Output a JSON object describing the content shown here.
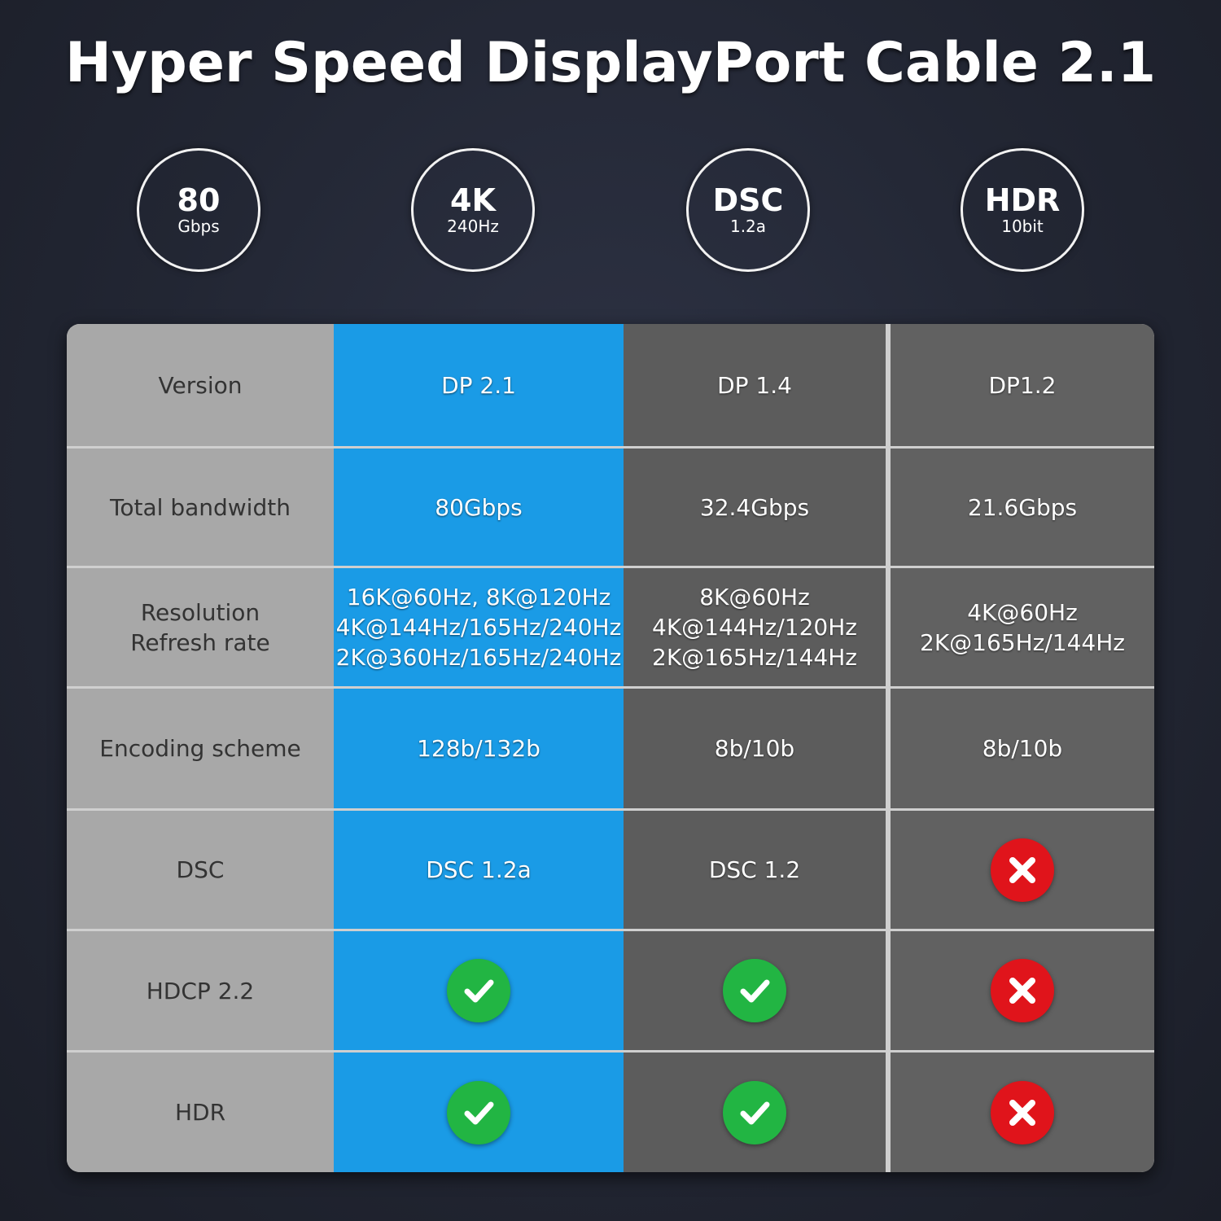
{
  "title": "Hyper Speed DisplayPort Cable 2.1",
  "badges": [
    {
      "big": "80",
      "small": "Gbps"
    },
    {
      "big": "4K",
      "small": "240Hz"
    },
    {
      "big": "DSC",
      "small": "1.2a"
    },
    {
      "big": "HDR",
      "small": "10bit"
    }
  ],
  "colors": {
    "highlight": "#1a9be6",
    "check": "#22b543",
    "cross": "#e0141b",
    "label_bg": "#a8a8a8",
    "dark_bg": "#5c5c5c"
  },
  "table": {
    "rows": [
      {
        "label": "Version",
        "cells": [
          {
            "text": "DP 2.1"
          },
          {
            "text": "DP 1.4"
          },
          {
            "text": "DP1.2"
          }
        ]
      },
      {
        "label": "Total bandwidth",
        "cells": [
          {
            "text": "80Gbps"
          },
          {
            "text": "32.4Gbps"
          },
          {
            "text": "21.6Gbps"
          }
        ]
      },
      {
        "label": "Resolution\nRefresh rate",
        "cells": [
          {
            "text": "16K@60Hz, 8K@120Hz\n4K@144Hz/165Hz/240Hz\n2K@360Hz/165Hz/240Hz"
          },
          {
            "text": "8K@60Hz\n4K@144Hz/120Hz\n2K@165Hz/144Hz"
          },
          {
            "text": "4K@60Hz\n2K@165Hz/144Hz"
          }
        ]
      },
      {
        "label": "Encoding scheme",
        "cells": [
          {
            "text": "128b/132b"
          },
          {
            "text": "8b/10b"
          },
          {
            "text": "8b/10b"
          }
        ]
      },
      {
        "label": "DSC",
        "cells": [
          {
            "text": "DSC 1.2a"
          },
          {
            "text": "DSC 1.2"
          },
          {
            "icon": "cross"
          }
        ]
      },
      {
        "label": "HDCP 2.2",
        "cells": [
          {
            "icon": "check"
          },
          {
            "icon": "check"
          },
          {
            "icon": "cross"
          }
        ]
      },
      {
        "label": "HDR",
        "cells": [
          {
            "icon": "check"
          },
          {
            "icon": "check"
          },
          {
            "icon": "cross"
          }
        ]
      }
    ]
  }
}
